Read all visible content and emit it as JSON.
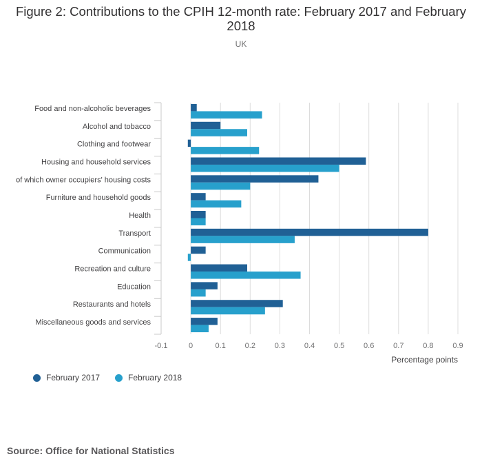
{
  "title": "Figure 2: Contributions to the CPIH 12-month rate: February 2017 and February 2018",
  "subtitle": "UK",
  "source": "Source: Office for National Statistics",
  "colors": {
    "series1": "#206095",
    "series2": "#27a0cc",
    "grid": "#dcdcdc",
    "axis": "#c8c8c8"
  },
  "chart_data": {
    "type": "bar",
    "orientation": "horizontal",
    "categories": [
      "Food and non-alcoholic beverages",
      "Alcohol and tobacco",
      "Clothing and footwear",
      "Housing and household services",
      "of which owner occupiers' housing costs",
      "Furniture and household goods",
      "Health",
      "Transport",
      "Communication",
      "Recreation and culture",
      "Education",
      "Restaurants and hotels",
      "Miscellaneous goods and services"
    ],
    "series": [
      {
        "name": "February 2017",
        "values": [
          0.02,
          0.1,
          -0.01,
          0.59,
          0.43,
          0.05,
          0.05,
          0.8,
          0.05,
          0.19,
          0.09,
          0.31,
          0.09
        ]
      },
      {
        "name": "February 2018",
        "values": [
          0.24,
          0.19,
          0.23,
          0.5,
          0.2,
          0.17,
          0.05,
          0.35,
          -0.01,
          0.37,
          0.05,
          0.25,
          0.06
        ]
      }
    ],
    "xlim": [
      -0.1,
      0.9
    ],
    "xticks": [
      "-0.1",
      "0",
      "0.1",
      "0.2",
      "0.3",
      "0.4",
      "0.5",
      "0.6",
      "0.7",
      "0.8",
      "0.9"
    ],
    "xlabel": "Percentage points",
    "ylabel": "",
    "grid": true,
    "legend_position": "bottom-left"
  }
}
